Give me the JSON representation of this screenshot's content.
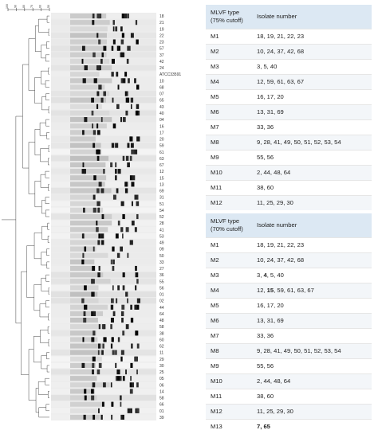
{
  "figure": {
    "scale_ticks": [
      "100",
      "90",
      "80",
      "70",
      "60",
      "50"
    ],
    "lane_labels": [
      "18",
      "21",
      "19",
      "22",
      "23",
      "57",
      "37",
      "42",
      "24",
      "ATCC33591",
      "10",
      "68",
      "07",
      "65",
      "43",
      "40",
      "04",
      "16",
      "17",
      "20",
      "59",
      "61",
      "63",
      "67",
      "12",
      "15",
      "13",
      "69",
      "31",
      "51",
      "54",
      "52",
      "28",
      "41",
      "53",
      "49",
      "09",
      "50",
      "33",
      "27",
      "36",
      "55",
      "56",
      "01",
      "02",
      "44",
      "64",
      "48",
      "58",
      "38",
      "60",
      "62",
      "11",
      "29",
      "30",
      "25",
      "05",
      "06",
      "14",
      "58",
      "66",
      "01",
      "39"
    ]
  },
  "table_75": {
    "header_type": "MLVF type",
    "header_cutoff": "(75% cutoff)",
    "header_isolate": "Isolate number",
    "rows": [
      {
        "type": "M1",
        "isolates": "18, 19, 21, 22, 23"
      },
      {
        "type": "M2",
        "isolates": "10, 24, 37, 42, 68"
      },
      {
        "type": "M3",
        "isolates": "3, 5, 40"
      },
      {
        "type": "M4",
        "isolates": "12, 59, 61, 63, 67"
      },
      {
        "type": "M5",
        "isolates": "16, 17, 20"
      },
      {
        "type": "M6",
        "isolates": "13, 31, 69"
      },
      {
        "type": "M7",
        "isolates": "33, 36"
      },
      {
        "type": "M8",
        "isolates": "9, 28, 41, 49, 50, 51, 52, 53, 54"
      },
      {
        "type": "M9",
        "isolates": "55, 56"
      },
      {
        "type": "M10",
        "isolates": "2, 44, 48, 64"
      },
      {
        "type": "M11",
        "isolates": "38, 60"
      },
      {
        "type": "M12",
        "isolates": "11, 25, 29, 30"
      }
    ]
  },
  "table_70": {
    "header_type": "MLVF type",
    "header_cutoff": "(70% cutoff)",
    "header_isolate": "Isolate number",
    "rows": [
      {
        "type": "M1",
        "parts": [
          {
            "t": "18, 19, 21, 22, 23",
            "b": false
          }
        ]
      },
      {
        "type": "M2",
        "parts": [
          {
            "t": "10, 24, 37, 42, 68",
            "b": false
          }
        ]
      },
      {
        "type": "M3",
        "parts": [
          {
            "t": "3, ",
            "b": false
          },
          {
            "t": "4",
            "b": true
          },
          {
            "t": ", 5, 40",
            "b": false
          }
        ]
      },
      {
        "type": "M4",
        "parts": [
          {
            "t": "12, ",
            "b": false
          },
          {
            "t": "15",
            "b": true
          },
          {
            "t": ", 59, 61, 63, 67",
            "b": false
          }
        ]
      },
      {
        "type": "M5",
        "parts": [
          {
            "t": "16, 17, 20",
            "b": false
          }
        ]
      },
      {
        "type": "M6",
        "parts": [
          {
            "t": "13, 31, 69",
            "b": false
          }
        ]
      },
      {
        "type": "M7",
        "parts": [
          {
            "t": "33, 36",
            "b": false
          }
        ]
      },
      {
        "type": "M8",
        "parts": [
          {
            "t": "9, 28, 41, 49, 50, 51, 52, 53, 54",
            "b": false
          }
        ]
      },
      {
        "type": "M9",
        "parts": [
          {
            "t": "55, 56",
            "b": false
          }
        ]
      },
      {
        "type": "M10",
        "parts": [
          {
            "t": "2, 44, 48, 64",
            "b": false
          }
        ]
      },
      {
        "type": "M11",
        "parts": [
          {
            "t": "38, 60",
            "b": false
          }
        ]
      },
      {
        "type": "M12",
        "parts": [
          {
            "t": "11, 25, 29, 30",
            "b": false
          }
        ]
      },
      {
        "type": "M13",
        "parts": [
          {
            "t": "7, 65",
            "b": true
          }
        ]
      }
    ]
  }
}
